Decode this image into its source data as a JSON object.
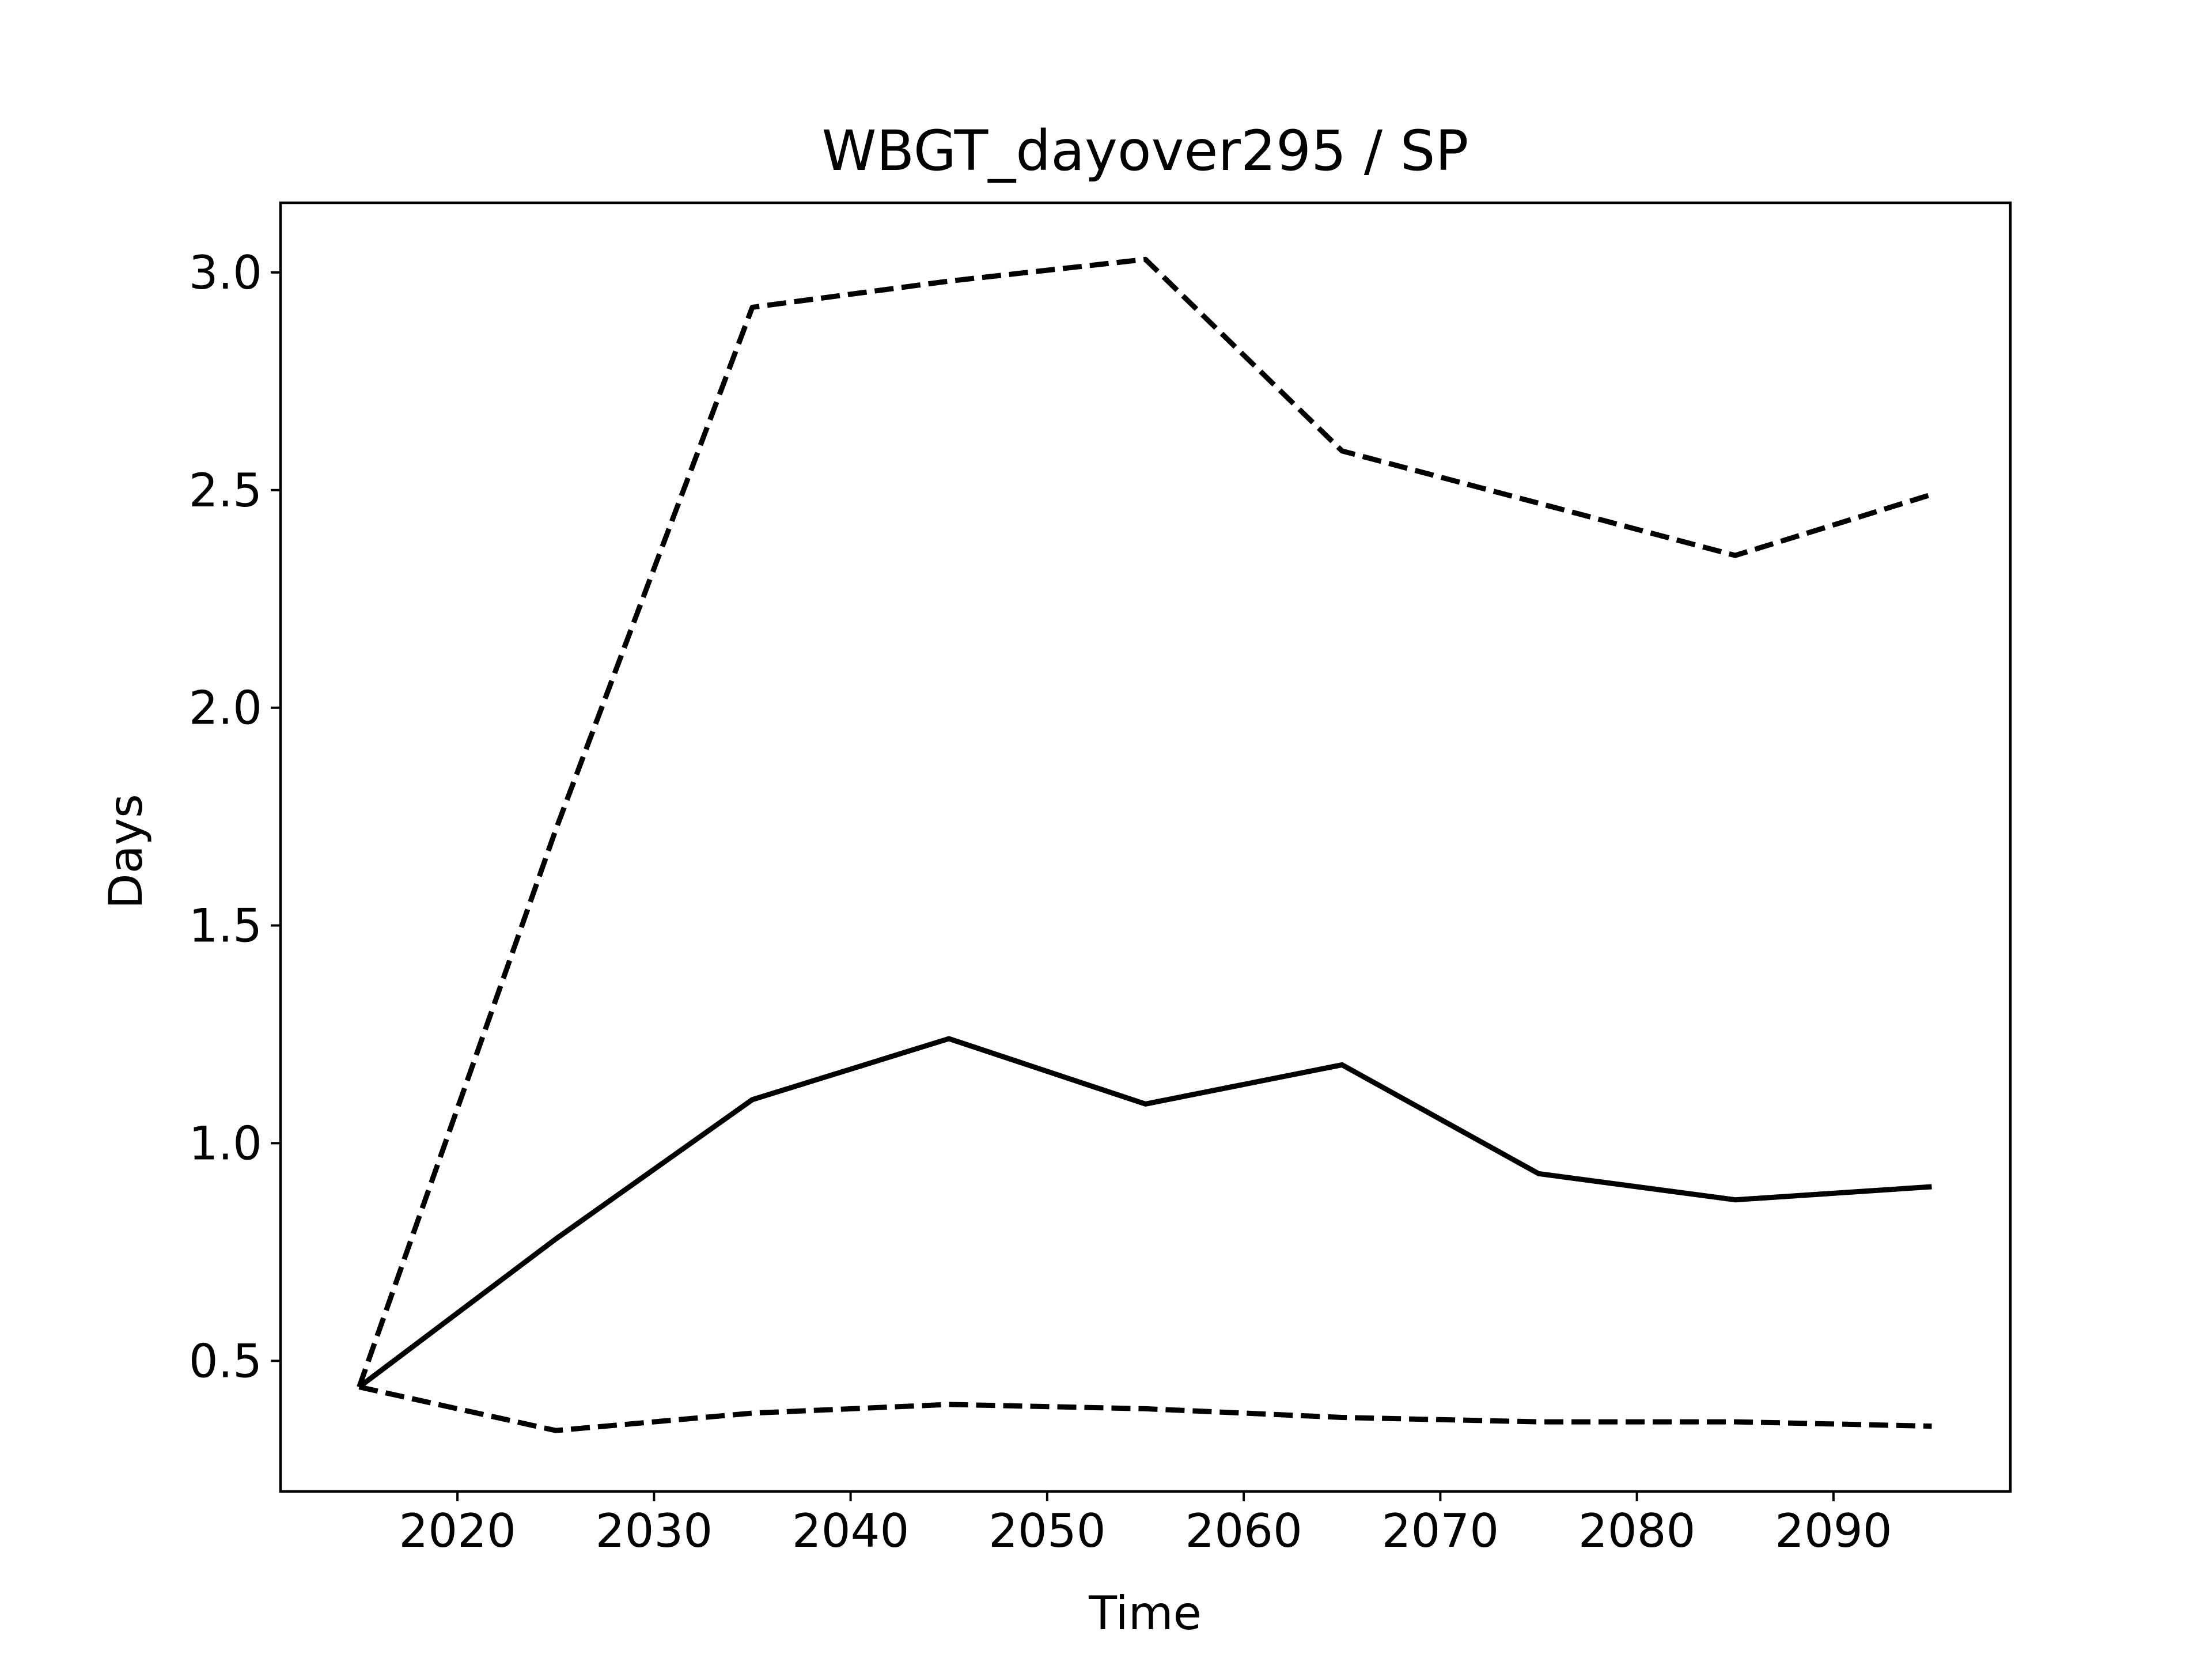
{
  "chart_data": {
    "type": "line",
    "title": "WBGT_dayover295 / SP",
    "xlabel": "Time",
    "ylabel": "Days",
    "xlim": [
      2011,
      2099
    ],
    "ylim": [
      0.2,
      3.16
    ],
    "xticks": [
      2020,
      2030,
      2040,
      2050,
      2060,
      2070,
      2080,
      2090
    ],
    "xtick_labels": [
      "2020",
      "2030",
      "2040",
      "2050",
      "2060",
      "2070",
      "2080",
      "2090"
    ],
    "yticks": [
      0.5,
      1.0,
      1.5,
      2.0,
      2.5,
      3.0
    ],
    "ytick_labels": [
      "0.5",
      "1.0",
      "1.5",
      "2.0",
      "2.5",
      "3.0"
    ],
    "grid": false,
    "legend": false,
    "x": [
      2015,
      2025,
      2035,
      2045,
      2055,
      2065,
      2075,
      2085,
      2095
    ],
    "series": [
      {
        "style": "dashed",
        "color": "#000000",
        "values": [
          0.44,
          1.72,
          2.92,
          2.98,
          3.03,
          2.59,
          2.47,
          2.35,
          2.49
        ]
      },
      {
        "style": "solid",
        "color": "#000000",
        "values": [
          0.44,
          0.78,
          1.1,
          1.24,
          1.09,
          1.18,
          0.93,
          0.87,
          0.9
        ]
      },
      {
        "style": "dashed",
        "color": "#000000",
        "values": [
          0.44,
          0.34,
          0.38,
          0.4,
          0.39,
          0.37,
          0.36,
          0.36,
          0.35
        ]
      }
    ]
  }
}
